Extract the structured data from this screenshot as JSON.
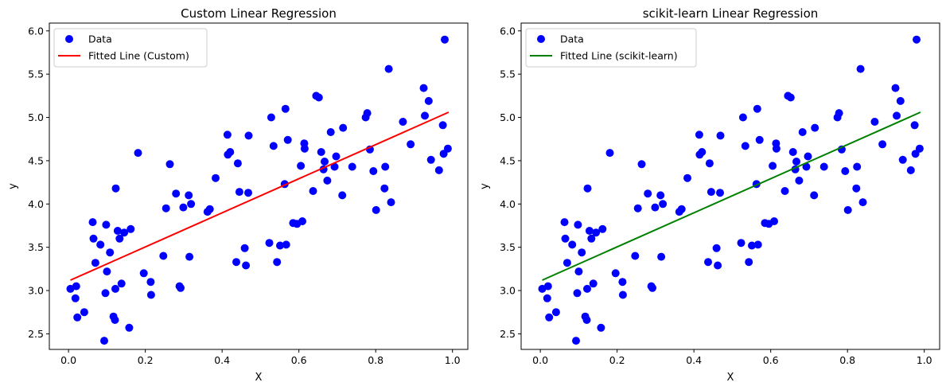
{
  "chart_data": [
    {
      "type": "scatter",
      "title": "Custom Linear Regression",
      "xlabel": "X",
      "ylabel": "y",
      "xlim": [
        -0.05,
        1.04
      ],
      "ylim": [
        2.32,
        6.09
      ],
      "xticks": [
        0.0,
        0.2,
        0.4,
        0.6,
        0.8,
        1.0
      ],
      "xtick_labels": [
        "0.0",
        "0.2",
        "0.4",
        "0.6",
        "0.8",
        "1.0"
      ],
      "yticks": [
        2.5,
        3.0,
        3.5,
        4.0,
        4.5,
        5.0,
        5.5,
        6.0
      ],
      "ytick_labels": [
        "2.5",
        "3.0",
        "3.5",
        "4.0",
        "4.5",
        "5.0",
        "5.5",
        "6.0"
      ],
      "grid": false,
      "legend": {
        "position": "top-left",
        "entries": [
          {
            "label": "Data",
            "kind": "marker",
            "color": "#0000ff"
          },
          {
            "label": "Fitted Line (Custom)",
            "kind": "line",
            "color": "#ff0000"
          }
        ]
      },
      "series": [
        {
          "name": "Data",
          "kind": "scatter",
          "color": "#0000ff"
        },
        {
          "name": "Fitted Line (Custom)",
          "kind": "line",
          "color": "#ff0000",
          "x": [
            0.005,
            0.99
          ],
          "y": [
            3.12,
            5.06
          ]
        }
      ]
    },
    {
      "type": "scatter",
      "title": "scikit-learn Linear Regression",
      "xlabel": "X",
      "ylabel": "y",
      "xlim": [
        -0.05,
        1.04
      ],
      "ylim": [
        2.32,
        6.09
      ],
      "xticks": [
        0.0,
        0.2,
        0.4,
        0.6,
        0.8,
        1.0
      ],
      "xtick_labels": [
        "0.0",
        "0.2",
        "0.4",
        "0.6",
        "0.8",
        "1.0"
      ],
      "yticks": [
        2.5,
        3.0,
        3.5,
        4.0,
        4.5,
        5.0,
        5.5,
        6.0
      ],
      "ytick_labels": [
        "2.5",
        "3.0",
        "3.5",
        "4.0",
        "4.5",
        "5.0",
        "5.5",
        "6.0"
      ],
      "grid": false,
      "legend": {
        "position": "top-left",
        "entries": [
          {
            "label": "Data",
            "kind": "marker",
            "color": "#0000ff"
          },
          {
            "label": "Fitted Line (scikit-learn)",
            "kind": "line",
            "color": "#008000"
          }
        ]
      },
      "series": [
        {
          "name": "Data",
          "kind": "scatter",
          "color": "#0000ff"
        },
        {
          "name": "Fitted Line (scikit-learn)",
          "kind": "line",
          "color": "#008000",
          "x": [
            0.005,
            0.99
          ],
          "y": [
            3.12,
            5.06
          ]
        }
      ]
    }
  ],
  "scatter_points": {
    "x": [
      0.005,
      0.018,
      0.02,
      0.023,
      0.041,
      0.063,
      0.065,
      0.07,
      0.083,
      0.093,
      0.096,
      0.098,
      0.1,
      0.108,
      0.117,
      0.121,
      0.122,
      0.123,
      0.128,
      0.133,
      0.138,
      0.145,
      0.158,
      0.162,
      0.181,
      0.196,
      0.214,
      0.215,
      0.247,
      0.254,
      0.264,
      0.28,
      0.289,
      0.292,
      0.299,
      0.313,
      0.315,
      0.319,
      0.362,
      0.368,
      0.383,
      0.414,
      0.415,
      0.421,
      0.437,
      0.441,
      0.445,
      0.459,
      0.462,
      0.468,
      0.469,
      0.523,
      0.528,
      0.534,
      0.543,
      0.551,
      0.563,
      0.565,
      0.567,
      0.571,
      0.585,
      0.595,
      0.605,
      0.609,
      0.614,
      0.615,
      0.637,
      0.645,
      0.652,
      0.658,
      0.664,
      0.667,
      0.674,
      0.683,
      0.693,
      0.697,
      0.713,
      0.715,
      0.739,
      0.774,
      0.778,
      0.785,
      0.794,
      0.801,
      0.823,
      0.825,
      0.834,
      0.84,
      0.871,
      0.891,
      0.925,
      0.928,
      0.938,
      0.944,
      0.965,
      0.975,
      0.977,
      0.98,
      0.988
    ],
    "y": [
      3.02,
      2.91,
      3.05,
      2.69,
      2.75,
      3.79,
      3.6,
      3.32,
      3.53,
      2.42,
      2.97,
      3.76,
      3.22,
      3.44,
      2.7,
      2.66,
      3.02,
      4.18,
      3.69,
      3.6,
      3.08,
      3.67,
      2.57,
      3.71,
      4.59,
      3.2,
      3.1,
      2.95,
      3.4,
      3.95,
      4.46,
      4.12,
      3.05,
      3.03,
      3.96,
      4.1,
      3.39,
      4.0,
      3.91,
      3.94,
      4.3,
      4.8,
      4.57,
      4.6,
      3.33,
      4.47,
      4.14,
      3.49,
      3.29,
      4.13,
      4.79,
      3.55,
      5.0,
      4.67,
      3.33,
      3.52,
      4.23,
      5.1,
      3.53,
      4.74,
      3.78,
      3.77,
      4.44,
      3.8,
      4.7,
      4.64,
      4.15,
      5.25,
      5.23,
      4.6,
      4.4,
      4.49,
      4.27,
      4.83,
      4.43,
      4.55,
      4.1,
      4.88,
      4.43,
      5.0,
      5.05,
      4.63,
      4.38,
      3.93,
      4.18,
      4.43,
      5.56,
      4.02,
      4.95,
      4.69,
      5.34,
      5.02,
      5.19,
      4.51,
      4.39,
      4.91,
      4.58,
      5.9,
      4.64
    ]
  }
}
